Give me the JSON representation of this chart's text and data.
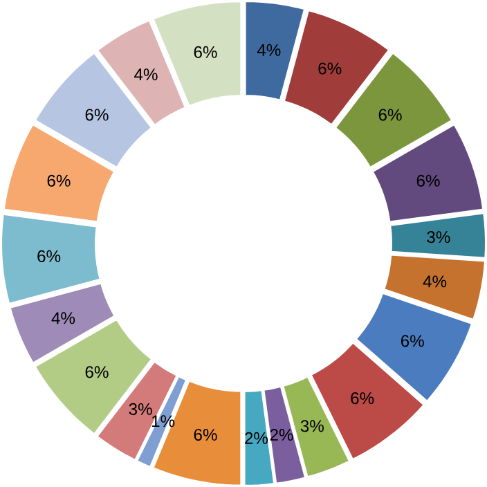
{
  "chart_data": {
    "type": "donut",
    "values": [
      4,
      6,
      6,
      6,
      3,
      4,
      6,
      6,
      3,
      2,
      2,
      6,
      1,
      3,
      6,
      4,
      6,
      6,
      6,
      4,
      6
    ],
    "value_labels": [
      "4%",
      "6%",
      "6%",
      "6%",
      "3%",
      "4%",
      "6%",
      "6%",
      "3%",
      "2%",
      "2%",
      "6%",
      "1%",
      "3%",
      "6%",
      "4%",
      "6%",
      "6%",
      "6%",
      "4%",
      "6%"
    ],
    "colors": [
      "#3f6a9f",
      "#a03c3a",
      "#7c963d",
      "#624a7f",
      "#368397",
      "#c6722f",
      "#4a7cbf",
      "#bc4a47",
      "#98b855",
      "#7b5e9e",
      "#46a9c1",
      "#e88d3a",
      "#7f9fd3",
      "#d27b7a",
      "#b2cc85",
      "#9e8bb8",
      "#7dbccf",
      "#f7a86e",
      "#b5c5e2",
      "#ddb3b3",
      "#d4e0c2"
    ]
  }
}
